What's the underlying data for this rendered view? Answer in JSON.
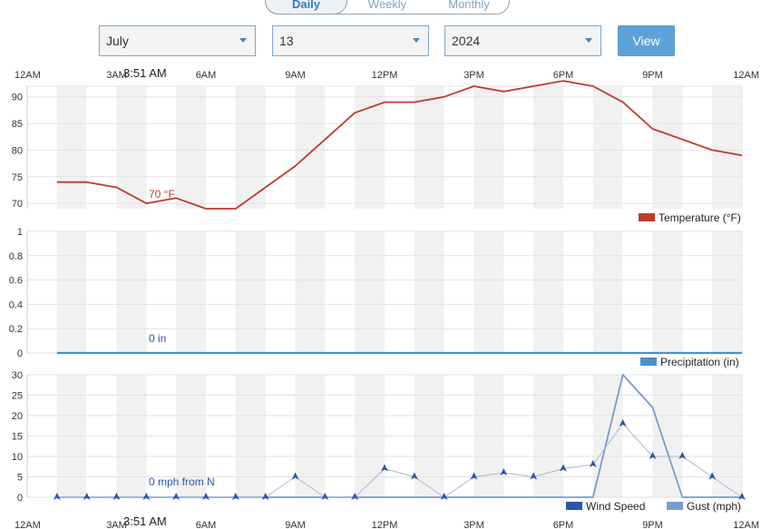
{
  "controls": {
    "range_tabs": [
      "Daily",
      "Weekly",
      "Monthly"
    ],
    "active_tab": "Daily",
    "month": "July",
    "day": "13",
    "year": "2024",
    "view_label": "View"
  },
  "time_ticks": [
    "12AM",
    "3AM",
    "6AM",
    "9AM",
    "12PM",
    "3PM",
    "6PM",
    "9PM",
    "12AM"
  ],
  "cursor_time": "3:51 AM",
  "colors": {
    "temperature": "#c0392b",
    "precipitation": "#4a90c8",
    "wind_speed": "#2e55a8",
    "gust": "#7b9bcc",
    "band": "#f1f1f1"
  },
  "chart_data": [
    {
      "type": "line",
      "x": [
        "1AM",
        "2AM",
        "3AM",
        "4AM",
        "5AM",
        "6AM",
        "7AM",
        "8AM",
        "9AM",
        "10AM",
        "11AM",
        "12PM",
        "1PM",
        "2PM",
        "3PM",
        "4PM",
        "5PM",
        "6PM",
        "7PM",
        "8PM",
        "9PM",
        "10PM",
        "11PM",
        "12AM"
      ],
      "series": [
        {
          "name": "Temperature (°F)",
          "values": [
            74,
            74,
            73,
            70,
            71,
            69,
            69,
            73,
            77,
            82,
            87,
            89,
            89,
            90,
            92,
            91,
            92,
            93,
            92,
            89,
            84,
            82,
            80,
            79
          ]
        }
      ],
      "ylim": [
        69,
        92
      ],
      "yticks": [
        "70",
        "75",
        "80",
        "85",
        "90"
      ],
      "cursor_readout": "70 °F"
    },
    {
      "type": "line",
      "x": [
        "1AM",
        "2AM",
        "3AM",
        "4AM",
        "5AM",
        "6AM",
        "7AM",
        "8AM",
        "9AM",
        "10AM",
        "11AM",
        "12PM",
        "1PM",
        "2PM",
        "3PM",
        "4PM",
        "5PM",
        "6PM",
        "7PM",
        "8PM",
        "9PM",
        "10PM",
        "11PM",
        "12AM"
      ],
      "series": [
        {
          "name": "Precipitation (in)",
          "values": [
            0,
            0,
            0,
            0,
            0,
            0,
            0,
            0,
            0,
            0,
            0,
            0,
            0,
            0,
            0,
            0,
            0,
            0,
            0,
            0,
            0,
            0,
            0,
            0
          ]
        }
      ],
      "ylim": [
        0,
        1
      ],
      "yticks": [
        "0",
        "0.2",
        "0.4",
        "0.6",
        "0.8",
        "1"
      ],
      "cursor_readout": "0 in"
    },
    {
      "type": "line",
      "x": [
        "1AM",
        "2AM",
        "3AM",
        "4AM",
        "5AM",
        "6AM",
        "7AM",
        "8AM",
        "9AM",
        "10AM",
        "11AM",
        "12PM",
        "1PM",
        "2PM",
        "3PM",
        "4PM",
        "5PM",
        "6PM",
        "7PM",
        "8PM",
        "9PM",
        "10PM",
        "11PM",
        "12AM"
      ],
      "series": [
        {
          "name": "Wind Speed",
          "values": [
            0,
            0,
            0,
            0,
            0,
            0,
            0,
            0,
            5,
            0,
            0,
            7,
            5,
            0,
            5,
            6,
            5,
            7,
            8,
            18,
            10,
            10,
            5,
            0
          ]
        },
        {
          "name": "Gust (mph)",
          "values": [
            0,
            0,
            0,
            0,
            0,
            0,
            0,
            0,
            0,
            0,
            0,
            0,
            0,
            0,
            0,
            0,
            0,
            0,
            0,
            30,
            22,
            0,
            0,
            0
          ]
        }
      ],
      "ylim": [
        0,
        30
      ],
      "yticks": [
        "0",
        "5",
        "10",
        "15",
        "20",
        "25",
        "30"
      ],
      "cursor_readout": "0 mph from N"
    }
  ]
}
